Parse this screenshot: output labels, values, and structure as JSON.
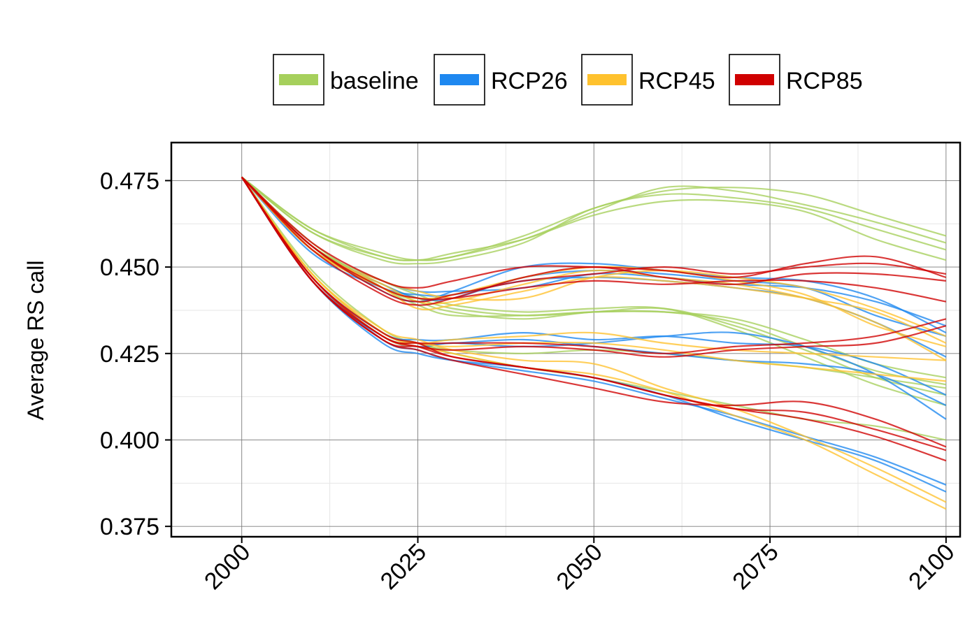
{
  "chart_data": {
    "type": "line",
    "title": "",
    "xlabel": "",
    "ylabel": "Average RS call",
    "xlim": [
      1990,
      2102
    ],
    "ylim": [
      0.372,
      0.486
    ],
    "x_ticks": [
      "2000",
      "2025",
      "2050",
      "2075",
      "2100"
    ],
    "y_ticks": [
      "0.375",
      "0.400",
      "0.425",
      "0.450",
      "0.475"
    ],
    "x": [
      2000,
      2010,
      2020,
      2025,
      2030,
      2040,
      2050,
      2060,
      2070,
      2080,
      2090,
      2100
    ],
    "grid": true,
    "legend_position": "top",
    "colors": {
      "baseline": "#a6d05c",
      "RCP26": "#1e88f0",
      "RCP45": "#ffc22e",
      "RCP85": "#d00000"
    },
    "series": [
      {
        "name": "baseline",
        "group": "upper",
        "values": [
          0.476,
          0.461,
          0.453,
          0.452,
          0.453,
          0.458,
          0.466,
          0.473,
          0.472,
          0.468,
          0.463,
          0.457
        ]
      },
      {
        "name": "baseline",
        "group": "upper",
        "values": [
          0.476,
          0.46,
          0.452,
          0.451,
          0.452,
          0.457,
          0.467,
          0.471,
          0.47,
          0.467,
          0.461,
          0.455
        ]
      },
      {
        "name": "baseline",
        "group": "upper",
        "values": [
          0.476,
          0.46,
          0.453,
          0.452,
          0.454,
          0.458,
          0.465,
          0.469,
          0.469,
          0.466,
          0.458,
          0.452
        ]
      },
      {
        "name": "baseline",
        "group": "upper",
        "values": [
          0.476,
          0.461,
          0.454,
          0.452,
          0.453,
          0.459,
          0.467,
          0.472,
          0.473,
          0.471,
          0.465,
          0.459
        ]
      },
      {
        "name": "baseline",
        "group": "middle",
        "values": [
          0.476,
          0.456,
          0.445,
          0.441,
          0.438,
          0.436,
          0.437,
          0.438,
          0.433,
          0.426,
          0.418,
          0.413
        ]
      },
      {
        "name": "baseline",
        "group": "middle",
        "values": [
          0.476,
          0.455,
          0.444,
          0.44,
          0.437,
          0.435,
          0.437,
          0.437,
          0.434,
          0.427,
          0.42,
          0.416
        ]
      },
      {
        "name": "baseline",
        "group": "middle",
        "values": [
          0.476,
          0.456,
          0.446,
          0.442,
          0.439,
          0.437,
          0.438,
          0.438,
          0.432,
          0.424,
          0.416,
          0.41
        ]
      },
      {
        "name": "baseline",
        "group": "middle",
        "values": [
          0.476,
          0.457,
          0.444,
          0.439,
          0.436,
          0.436,
          0.437,
          0.437,
          0.435,
          0.429,
          0.422,
          0.418
        ]
      },
      {
        "name": "baseline",
        "group": "lower",
        "values": [
          0.476,
          0.449,
          0.432,
          0.428,
          0.426,
          0.425,
          0.426,
          0.425,
          0.423,
          0.421,
          0.418,
          0.415
        ]
      },
      {
        "name": "baseline",
        "group": "lower",
        "values": [
          0.476,
          0.448,
          0.431,
          0.428,
          0.425,
          0.421,
          0.418,
          0.414,
          0.41,
          0.406,
          0.404,
          0.4
        ]
      },
      {
        "name": "RCP26",
        "group": "middle",
        "values": [
          0.476,
          0.455,
          0.446,
          0.443,
          0.443,
          0.444,
          0.448,
          0.447,
          0.445,
          0.444,
          0.44,
          0.433
        ]
      },
      {
        "name": "RCP26",
        "group": "middle",
        "values": [
          0.476,
          0.454,
          0.444,
          0.442,
          0.442,
          0.446,
          0.447,
          0.446,
          0.444,
          0.441,
          0.434,
          0.424
        ]
      },
      {
        "name": "RCP26",
        "group": "middle",
        "values": [
          0.476,
          0.455,
          0.445,
          0.441,
          0.441,
          0.447,
          0.449,
          0.448,
          0.446,
          0.444,
          0.436,
          0.43
        ]
      },
      {
        "name": "RCP26",
        "group": "middle",
        "values": [
          0.476,
          0.456,
          0.443,
          0.44,
          0.443,
          0.45,
          0.451,
          0.449,
          0.447,
          0.446,
          0.441,
          0.431
        ]
      },
      {
        "name": "RCP26",
        "group": "lower",
        "values": [
          0.476,
          0.447,
          0.431,
          0.429,
          0.429,
          0.431,
          0.429,
          0.43,
          0.428,
          0.427,
          0.422,
          0.413
        ]
      },
      {
        "name": "RCP26",
        "group": "lower",
        "values": [
          0.476,
          0.446,
          0.43,
          0.428,
          0.428,
          0.429,
          0.427,
          0.425,
          0.423,
          0.422,
          0.419,
          0.41
        ]
      },
      {
        "name": "RCP26",
        "group": "lower",
        "values": [
          0.476,
          0.446,
          0.43,
          0.427,
          0.428,
          0.427,
          0.428,
          0.43,
          0.431,
          0.427,
          0.419,
          0.406
        ]
      },
      {
        "name": "RCP26",
        "group": "lower",
        "values": [
          0.476,
          0.447,
          0.429,
          0.426,
          0.423,
          0.42,
          0.417,
          0.412,
          0.407,
          0.401,
          0.395,
          0.387
        ]
      },
      {
        "name": "RCP26",
        "group": "lower",
        "values": [
          0.476,
          0.446,
          0.428,
          0.425,
          0.423,
          0.421,
          0.418,
          0.413,
          0.406,
          0.4,
          0.394,
          0.385
        ]
      },
      {
        "name": "RCP45",
        "group": "middle",
        "values": [
          0.476,
          0.455,
          0.446,
          0.443,
          0.441,
          0.441,
          0.447,
          0.449,
          0.447,
          0.444,
          0.438,
          0.43
        ]
      },
      {
        "name": "RCP45",
        "group": "middle",
        "values": [
          0.476,
          0.455,
          0.445,
          0.44,
          0.44,
          0.445,
          0.449,
          0.447,
          0.445,
          0.441,
          0.434,
          0.423
        ]
      },
      {
        "name": "RCP45",
        "group": "middle",
        "values": [
          0.476,
          0.456,
          0.444,
          0.438,
          0.439,
          0.443,
          0.447,
          0.446,
          0.444,
          0.441,
          0.437,
          0.428
        ]
      },
      {
        "name": "RCP45",
        "group": "middle",
        "values": [
          0.476,
          0.455,
          0.444,
          0.441,
          0.442,
          0.447,
          0.45,
          0.449,
          0.446,
          0.442,
          0.433,
          0.427
        ]
      },
      {
        "name": "RCP45",
        "group": "lower",
        "values": [
          0.476,
          0.448,
          0.431,
          0.428,
          0.429,
          0.43,
          0.431,
          0.428,
          0.426,
          0.425,
          0.424,
          0.423
        ]
      },
      {
        "name": "RCP45",
        "group": "lower",
        "values": [
          0.476,
          0.447,
          0.43,
          0.428,
          0.427,
          0.428,
          0.428,
          0.426,
          0.423,
          0.421,
          0.419,
          0.417
        ]
      },
      {
        "name": "RCP45",
        "group": "lower",
        "values": [
          0.476,
          0.448,
          0.432,
          0.429,
          0.426,
          0.423,
          0.422,
          0.415,
          0.409,
          0.401,
          0.392,
          0.382
        ]
      },
      {
        "name": "RCP45",
        "group": "lower",
        "values": [
          0.476,
          0.447,
          0.43,
          0.427,
          0.425,
          0.421,
          0.419,
          0.414,
          0.407,
          0.4,
          0.39,
          0.38
        ]
      },
      {
        "name": "RCP85",
        "group": "middle",
        "values": [
          0.476,
          0.456,
          0.443,
          0.44,
          0.442,
          0.446,
          0.448,
          0.45,
          0.448,
          0.45,
          0.451,
          0.448
        ]
      },
      {
        "name": "RCP85",
        "group": "middle",
        "values": [
          0.476,
          0.455,
          0.442,
          0.439,
          0.441,
          0.447,
          0.45,
          0.447,
          0.445,
          0.448,
          0.448,
          0.446
        ]
      },
      {
        "name": "RCP85",
        "group": "middle",
        "values": [
          0.476,
          0.456,
          0.444,
          0.441,
          0.441,
          0.444,
          0.446,
          0.445,
          0.446,
          0.446,
          0.444,
          0.44
        ]
      },
      {
        "name": "RCP85",
        "group": "middle",
        "values": [
          0.476,
          0.457,
          0.446,
          0.444,
          0.446,
          0.45,
          0.45,
          0.449,
          0.447,
          0.451,
          0.453,
          0.447
        ]
      },
      {
        "name": "RCP85",
        "group": "lower",
        "values": [
          0.476,
          0.447,
          0.43,
          0.428,
          0.428,
          0.428,
          0.427,
          0.425,
          0.427,
          0.428,
          0.43,
          0.435
        ]
      },
      {
        "name": "RCP85",
        "group": "lower",
        "values": [
          0.476,
          0.446,
          0.429,
          0.427,
          0.426,
          0.427,
          0.426,
          0.424,
          0.426,
          0.427,
          0.428,
          0.433
        ]
      },
      {
        "name": "RCP85",
        "group": "lower",
        "values": [
          0.476,
          0.447,
          0.431,
          0.428,
          0.424,
          0.421,
          0.418,
          0.413,
          0.409,
          0.408,
          0.403,
          0.397
        ]
      },
      {
        "name": "RCP85",
        "group": "lower",
        "values": [
          0.476,
          0.446,
          0.429,
          0.426,
          0.423,
          0.419,
          0.415,
          0.411,
          0.41,
          0.411,
          0.406,
          0.398
        ]
      },
      {
        "name": "RCP85",
        "group": "lower",
        "values": [
          0.476,
          0.446,
          0.43,
          0.427,
          0.424,
          0.421,
          0.418,
          0.413,
          0.409,
          0.406,
          0.401,
          0.394
        ]
      }
    ],
    "legend": [
      "baseline",
      "RCP26",
      "RCP45",
      "RCP85"
    ]
  }
}
